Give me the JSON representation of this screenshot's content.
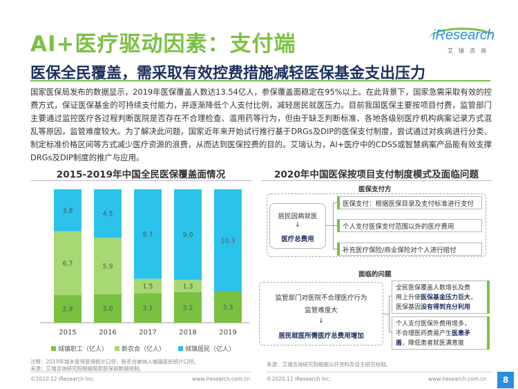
{
  "header": {
    "title": "AI+医疗驱动因素：支付端",
    "subtitle": "医保全民覆盖，需采取有效控费措施减轻医保基金支出压力",
    "logo_text": "iResearch",
    "logo_cn": "艾瑞咨询",
    "brand_green": "#7ac142",
    "brand_blue": "#2a8ee2"
  },
  "intro": "国家医保局发布的数据显示，2019年医保覆盖人数达13.54亿人，参保覆盖面稳定在95%以上。在此背景下，国家急需采取有效的控费方式，保证医保基金的可持续支付能力，并逐渐降低个人支付比例，减轻居民就医压力。目前我国医保主要按项目付费，监管部门主要通过监控医疗各过程判断医院是否存在不合理检查、滥用药等行为，但由于缺乏判断标准、各地各级别医疗机构病案记录方式混乱等原因，监管难度较大。为了解决此问题，国家近年来开始试行推行基于DRGs及DIP的医保支付制度，尝试通过对疾病进行分类、制定标准价格区间等方式减少医疗资源的浪费，从而达到医保控费的目的。艾瑞认为，AI+医疗中的CDSS或智慧病案产品能有效支撑DRGs及DIP制度的推广与应用。",
  "left_title": "2015-2019年中国全民医保覆盖面情况",
  "right_title": "2020年中国医保按项目支付制度模式及面临问题",
  "chart_data": {
    "type": "bar",
    "stacked": true,
    "categories": [
      "2015",
      "2016",
      "2017",
      "2018",
      "2019"
    ],
    "series": [
      {
        "name": "城镇职工（亿人）",
        "color": "#7ac142",
        "values": [
          2.9,
          3.0,
          3.1,
          3.2,
          3.3
        ]
      },
      {
        "name": "新农合（亿人）",
        "color": "#a8d873",
        "values": [
          6.7,
          5.9,
          1.5,
          1.3,
          null
        ]
      },
      {
        "name": "城镇居民（亿人）",
        "color": "#2bc3ec",
        "values": [
          3.8,
          4.5,
          8.7,
          9.0,
          10.3
        ]
      }
    ],
    "data_labels": {
      "green": [
        "2.9",
        "3.0",
        "3.1",
        "3.2",
        "3.3"
      ],
      "lightgreen": [
        "6.7",
        "5.9",
        "1.5",
        "1.3",
        ""
      ],
      "cyan": [
        "3.8",
        "4.5",
        "8.7",
        "9.0",
        "10.3"
      ]
    },
    "legend_position": "bottom",
    "grid": false
  },
  "diagram": {
    "payer_label": "医保支付方",
    "hospital_label": "居民因病就医",
    "arrow": "↓",
    "total_cost": "医疗总费用",
    "items": [
      "医保支付：根据医保目录及支付标准进行支付",
      "个人支付医保支付范围以外的医疗费用",
      "补充医疗保险/商业保险对个人进行赔付"
    ],
    "problems_label": "面临的问题",
    "problem_left_1": "监管部门对医院不合理医疗行为",
    "problem_left_2": "监管难度大",
    "problem_left_3": "居民就医所需医疗总费用增加",
    "problem_right_a_1": "全民医保覆盖人数增长及费",
    "problem_right_a_2": "用上升使",
    "problem_right_a_2b": "医保基金压力巨大",
    "problem_right_a_2c": "，",
    "problem_right_a_3": "医保基因",
    "problem_right_a_3b": "没有得到充分利用",
    "problem_right_b_1": "个人支付医保外费用增多，",
    "problem_right_b_2": "不合理医药费易产生",
    "problem_right_b_2b": "医患矛",
    "problem_right_b_3": "盾",
    "problem_right_b_3b": "，降低患者就医满意度"
  },
  "footer": {
    "note_left_1": "注释：2019年城乡医保医保统计口径，新农合被纳入城镇居民统计口径。",
    "note_left_2": "来源：艾瑞咨询研究院根据国家医保局数据绘制。",
    "note_right": "来源：艾瑞咨询研究院根据公开资料及自主研究绘制。",
    "copyright_left": "©2020.12 iResearch Inc.",
    "site_left": "www.iresearch.com.cn",
    "copyright_right": "©2020.12 iResearch Inc.",
    "site_right": "www.iresearch.com.cn",
    "page": "8"
  }
}
